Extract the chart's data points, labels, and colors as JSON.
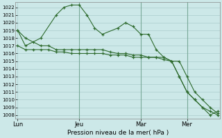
{
  "bg_color": "#cce8e8",
  "grid_color": "#aacccc",
  "line_color": "#2d6a2d",
  "xlabel_text": "Pression niveau de la mer( hPa )",
  "ylim_low": 1007.5,
  "ylim_high": 1022.7,
  "yticks": [
    1008,
    1009,
    1010,
    1011,
    1012,
    1013,
    1014,
    1015,
    1016,
    1017,
    1018,
    1019,
    1020,
    1021,
    1022
  ],
  "x_tick_labels": [
    "Lun",
    "Jeu",
    "Mar",
    "Mer"
  ],
  "x_tick_positions": [
    0,
    8,
    16,
    22
  ],
  "vline_positions": [
    8,
    16,
    22
  ],
  "xlim_low": -0.3,
  "xlim_high": 26.3,
  "series1_x": [
    0,
    1,
    3,
    5,
    6,
    7,
    8,
    9,
    10,
    11,
    13,
    14,
    15,
    16,
    17,
    18,
    19,
    20,
    21,
    22,
    23,
    24,
    25,
    26
  ],
  "series1_y": [
    1019,
    1017,
    1018,
    1021,
    1022,
    1022.3,
    1022.3,
    1021,
    1019.3,
    1018.5,
    1019.3,
    1020,
    1019.5,
    1018.5,
    1018.5,
    1016.5,
    1015.5,
    1015,
    1015,
    1013,
    1011,
    1010,
    1009,
    1008.2
  ],
  "series2_x": [
    0,
    1,
    2,
    3,
    4,
    5,
    6,
    7,
    8,
    9,
    10,
    11,
    12,
    13,
    14,
    15,
    16,
    17,
    18,
    19,
    20,
    21,
    22,
    23,
    24,
    25,
    26
  ],
  "series2_y": [
    1017,
    1016.5,
    1016.5,
    1016.5,
    1016.5,
    1016.2,
    1016.2,
    1016,
    1016,
    1016,
    1016,
    1016,
    1015.8,
    1015.8,
    1015.8,
    1015.5,
    1015.5,
    1015.5,
    1015.5,
    1015.2,
    1015,
    1013,
    1011,
    1010,
    1009,
    1008.5,
    1008
  ],
  "series3_x": [
    0,
    1,
    2,
    3,
    4,
    5,
    6,
    7,
    8,
    9,
    10,
    11,
    12,
    13,
    14,
    15,
    16,
    17,
    18,
    19,
    20,
    21,
    22,
    23,
    24,
    25,
    26
  ],
  "series3_y": [
    1019,
    1018,
    1017.5,
    1017,
    1017,
    1016.5,
    1016.5,
    1016.5,
    1016.5,
    1016.5,
    1016.5,
    1016.5,
    1016.2,
    1016,
    1016,
    1015.8,
    1015.8,
    1015.5,
    1015.5,
    1015.5,
    1015,
    1013,
    1011,
    1010,
    1009,
    1008,
    1008.5
  ],
  "n_total": 27
}
